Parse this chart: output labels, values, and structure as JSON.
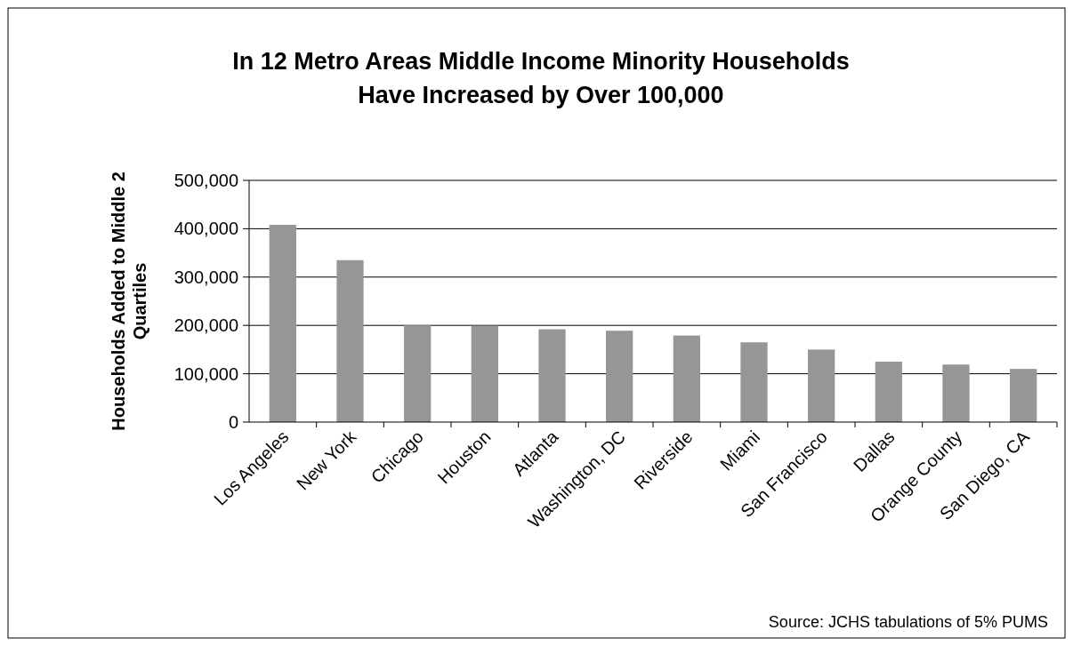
{
  "chart_data": {
    "type": "bar",
    "title": "In 12 Metro Areas Middle Income Minority Households\nHave Increased by Over 100,000",
    "ylabel": "Households Added to Middle 2\nQuartiles",
    "categories": [
      "Los Angeles",
      "New York",
      "Chicago",
      "Houston",
      "Atlanta",
      "Washington, DC",
      "Riverside",
      "Miami",
      "San Francisco",
      "Dallas",
      "Orange County",
      "San Diego, CA"
    ],
    "values": [
      408000,
      335000,
      200000,
      199000,
      192000,
      189000,
      179000,
      165000,
      150000,
      125000,
      119000,
      110000
    ],
    "color": "#969696",
    "ylim": [
      0,
      500000
    ],
    "yticks": [
      {
        "value": 0,
        "label": "0"
      },
      {
        "value": 100000,
        "label": "100,000"
      },
      {
        "value": 200000,
        "label": "200,000"
      },
      {
        "value": 300000,
        "label": "300,000"
      },
      {
        "value": 400000,
        "label": "400,000"
      },
      {
        "value": 500000,
        "label": "500,000"
      }
    ],
    "grid": "y",
    "annotations": [
      "Source: JCHS tabulations of 5% PUMS"
    ]
  }
}
